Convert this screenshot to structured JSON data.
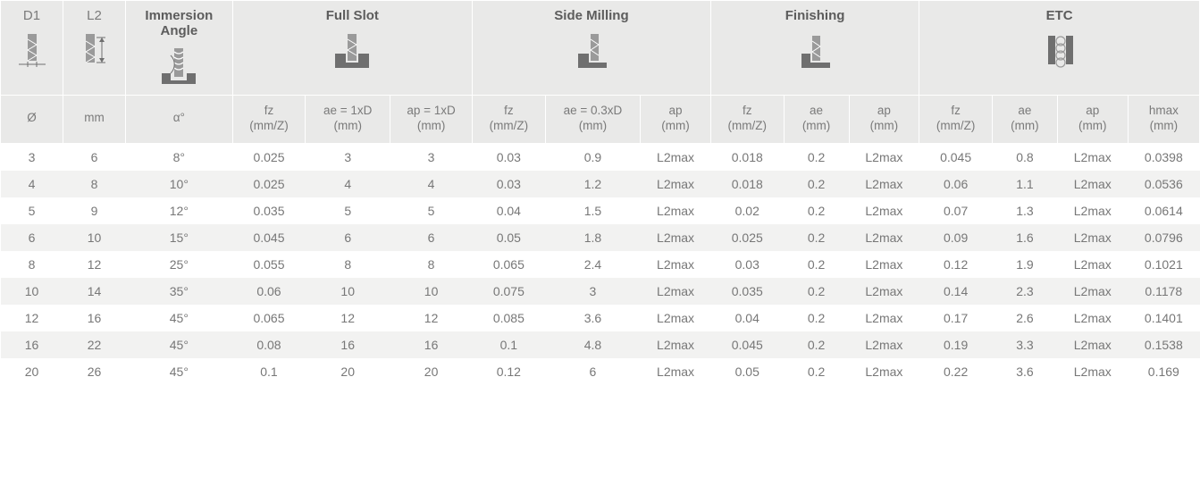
{
  "groups": {
    "d1": "D1",
    "l2": "L2",
    "immersion": "Immersion Angle",
    "fullslot": "Full Slot",
    "side": "Side Milling",
    "finishing": "Finishing",
    "etc": "ETC"
  },
  "subheaders": {
    "d1": {
      "line1": "Ø",
      "line2": ""
    },
    "l2": {
      "line1": "mm",
      "line2": ""
    },
    "angle": {
      "line1": "α°",
      "line2": ""
    },
    "fs_fz": {
      "line1": "fz",
      "line2": "(mm/Z)"
    },
    "fs_ae": {
      "line1": "ae = 1xD",
      "line2": "(mm)"
    },
    "fs_ap": {
      "line1": "ap = 1xD",
      "line2": "(mm)"
    },
    "sm_fz": {
      "line1": "fz",
      "line2": "(mm/Z)"
    },
    "sm_ae": {
      "line1": "ae = 0.3xD",
      "line2": "(mm)"
    },
    "sm_ap": {
      "line1": "ap",
      "line2": "(mm)"
    },
    "fi_fz": {
      "line1": "fz",
      "line2": "(mm/Z)"
    },
    "fi_ae": {
      "line1": "ae",
      "line2": "(mm)"
    },
    "fi_ap": {
      "line1": "ap",
      "line2": "(mm)"
    },
    "et_fz": {
      "line1": "fz",
      "line2": "(mm/Z)"
    },
    "et_ae": {
      "line1": "ae",
      "line2": "(mm)"
    },
    "et_ap": {
      "line1": "ap",
      "line2": "(mm)"
    },
    "et_hmax": {
      "line1": "hmax",
      "line2": "(mm)"
    }
  },
  "rows": [
    [
      "3",
      "6",
      "8°",
      "0.025",
      "3",
      "3",
      "0.03",
      "0.9",
      "L2max",
      "0.018",
      "0.2",
      "L2max",
      "0.045",
      "0.8",
      "L2max",
      "0.0398"
    ],
    [
      "4",
      "8",
      "10°",
      "0.025",
      "4",
      "4",
      "0.03",
      "1.2",
      "L2max",
      "0.018",
      "0.2",
      "L2max",
      "0.06",
      "1.1",
      "L2max",
      "0.0536"
    ],
    [
      "5",
      "9",
      "12°",
      "0.035",
      "5",
      "5",
      "0.04",
      "1.5",
      "L2max",
      "0.02",
      "0.2",
      "L2max",
      "0.07",
      "1.3",
      "L2max",
      "0.0614"
    ],
    [
      "6",
      "10",
      "15°",
      "0.045",
      "6",
      "6",
      "0.05",
      "1.8",
      "L2max",
      "0.025",
      "0.2",
      "L2max",
      "0.09",
      "1.6",
      "L2max",
      "0.0796"
    ],
    [
      "8",
      "12",
      "25°",
      "0.055",
      "8",
      "8",
      "0.065",
      "2.4",
      "L2max",
      "0.03",
      "0.2",
      "L2max",
      "0.12",
      "1.9",
      "L2max",
      "0.1021"
    ],
    [
      "10",
      "14",
      "35°",
      "0.06",
      "10",
      "10",
      "0.075",
      "3",
      "L2max",
      "0.035",
      "0.2",
      "L2max",
      "0.14",
      "2.3",
      "L2max",
      "0.1178"
    ],
    [
      "12",
      "16",
      "45°",
      "0.065",
      "12",
      "12",
      "0.085",
      "3.6",
      "L2max",
      "0.04",
      "0.2",
      "L2max",
      "0.17",
      "2.6",
      "L2max",
      "0.1401"
    ],
    [
      "16",
      "22",
      "45°",
      "0.08",
      "16",
      "16",
      "0.1",
      "4.8",
      "L2max",
      "0.045",
      "0.2",
      "L2max",
      "0.19",
      "3.3",
      "L2max",
      "0.1538"
    ],
    [
      "20",
      "26",
      "45°",
      "0.1",
      "20",
      "20",
      "0.12",
      "6",
      "L2max",
      "0.05",
      "0.2",
      "L2max",
      "0.22",
      "3.6",
      "L2max",
      "0.169"
    ]
  ],
  "column_widths_pct": [
    4.8,
    4.8,
    8.2,
    5.6,
    6.5,
    6.3,
    5.6,
    7.3,
    5.4,
    5.6,
    5.0,
    5.4,
    5.6,
    5.0,
    5.4,
    5.5
  ],
  "colors": {
    "header_bg": "#e9e9e8",
    "stripe_bg": "#f2f2f1",
    "border": "#ffffff",
    "text": "#777777",
    "title_text": "#5c5c5c",
    "icon_fill": "#6f6f6f"
  }
}
